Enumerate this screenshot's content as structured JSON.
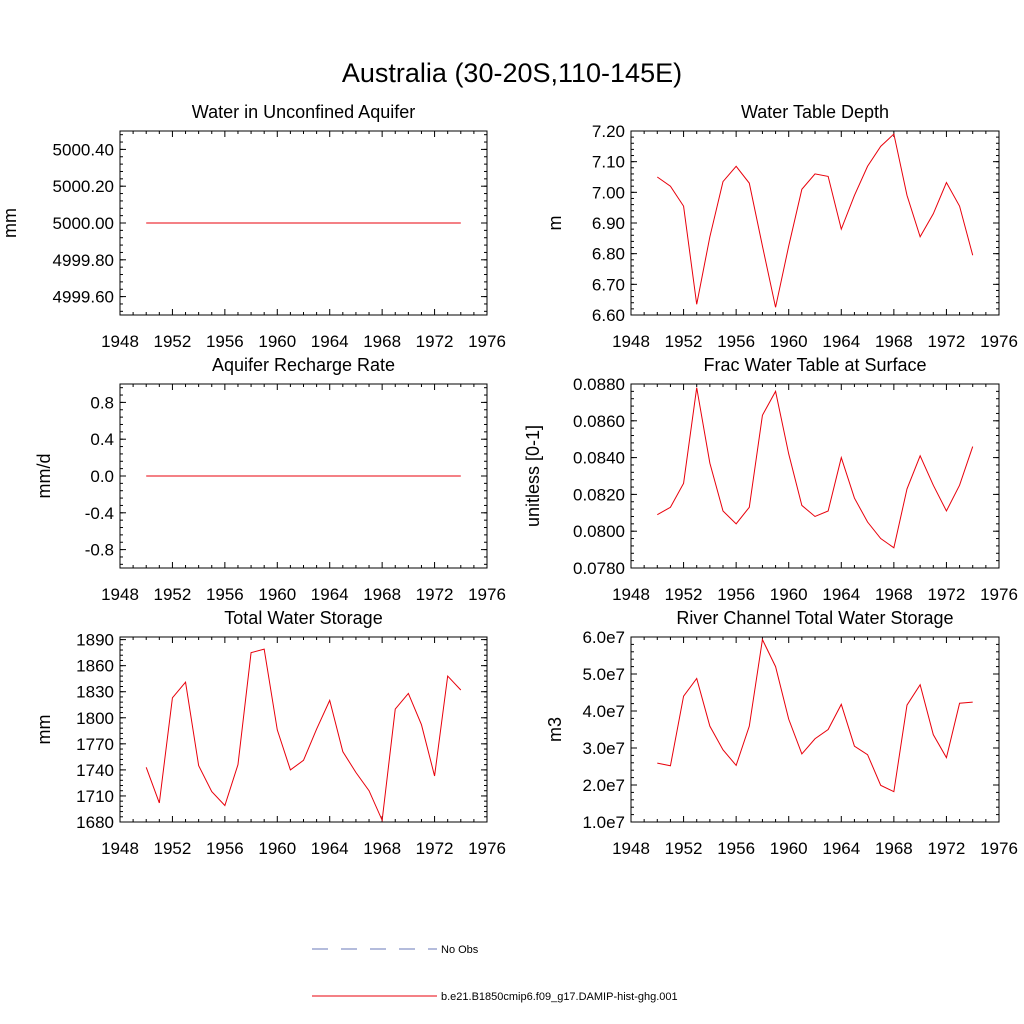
{
  "main_title": "Australia (30-20S,110-145E)",
  "colors": {
    "series": "#e8000b",
    "obs": "#6a7ab8"
  },
  "legend": {
    "obs_label": "No Obs",
    "model_label": "b.e21.B1850cmip6.f09_g17.DAMIP-hist-ghg.001"
  },
  "chart_data": [
    {
      "type": "line",
      "title": "Water in Unconfined Aquifer",
      "ylabel": "mm",
      "xlim": [
        1948,
        1976
      ],
      "ylim": [
        4999.5,
        5000.5
      ],
      "xticks": [
        1948,
        1952,
        1956,
        1960,
        1964,
        1968,
        1972,
        1976
      ],
      "xtick_labels": [
        "1948",
        "1952",
        "1956",
        "1960",
        "1964",
        "1968",
        "1972",
        "1976"
      ],
      "yticks": [
        4999.6,
        4999.8,
        5000.0,
        5000.2,
        5000.4
      ],
      "ytick_labels": [
        "4999.60",
        "4999.80",
        "5000.00",
        "5000.20",
        "5000.40"
      ],
      "x": [
        1950,
        1951,
        1952,
        1953,
        1954,
        1955,
        1956,
        1957,
        1958,
        1959,
        1960,
        1961,
        1962,
        1963,
        1964,
        1965,
        1966,
        1967,
        1968,
        1969,
        1970,
        1971,
        1972,
        1973,
        1974
      ],
      "series": [
        {
          "values": [
            5000,
            5000,
            5000,
            5000,
            5000,
            5000,
            5000,
            5000,
            5000,
            5000,
            5000,
            5000,
            5000,
            5000,
            5000,
            5000,
            5000,
            5000,
            5000,
            5000,
            5000,
            5000,
            5000,
            5000,
            5000
          ]
        }
      ]
    },
    {
      "type": "line",
      "title": "Water Table Depth",
      "ylabel": "m",
      "xlim": [
        1948,
        1976
      ],
      "ylim": [
        6.6,
        7.2
      ],
      "xticks": [
        1948,
        1952,
        1956,
        1960,
        1964,
        1968,
        1972,
        1976
      ],
      "xtick_labels": [
        "1948",
        "1952",
        "1956",
        "1960",
        "1964",
        "1968",
        "1972",
        "1976"
      ],
      "yticks": [
        6.6,
        6.7,
        6.8,
        6.9,
        7.0,
        7.1,
        7.2
      ],
      "ytick_labels": [
        "6.60",
        "6.70",
        "6.80",
        "6.90",
        "7.00",
        "7.10",
        "7.20"
      ],
      "x": [
        1950,
        1951,
        1952,
        1953,
        1954,
        1955,
        1956,
        1957,
        1958,
        1959,
        1960,
        1961,
        1962,
        1963,
        1964,
        1965,
        1966,
        1967,
        1968,
        1969,
        1970,
        1971,
        1972,
        1973,
        1974
      ],
      "series": [
        {
          "values": [
            7.05,
            7.02,
            6.955,
            6.635,
            6.855,
            7.035,
            7.085,
            7.03,
            6.825,
            6.625,
            6.825,
            7.01,
            7.06,
            7.052,
            6.88,
            6.99,
            7.085,
            7.15,
            7.19,
            6.99,
            6.855,
            6.93,
            7.032,
            6.955,
            6.795
          ]
        }
      ]
    },
    {
      "type": "line",
      "title": "Aquifer Recharge Rate",
      "ylabel": "mm/d",
      "xlim": [
        1948,
        1976
      ],
      "ylim": [
        -1.0,
        1.0
      ],
      "xticks": [
        1948,
        1952,
        1956,
        1960,
        1964,
        1968,
        1972,
        1976
      ],
      "xtick_labels": [
        "1948",
        "1952",
        "1956",
        "1960",
        "1964",
        "1968",
        "1972",
        "1976"
      ],
      "yticks": [
        -0.8,
        -0.4,
        0.0,
        0.4,
        0.8
      ],
      "ytick_labels": [
        "-0.8",
        "-0.4",
        "0.0",
        "0.4",
        "0.8"
      ],
      "x": [
        1950,
        1951,
        1952,
        1953,
        1954,
        1955,
        1956,
        1957,
        1958,
        1959,
        1960,
        1961,
        1962,
        1963,
        1964,
        1965,
        1966,
        1967,
        1968,
        1969,
        1970,
        1971,
        1972,
        1973,
        1974
      ],
      "series": [
        {
          "values": [
            0,
            0,
            0,
            0,
            0,
            0,
            0,
            0,
            0,
            0,
            0,
            0,
            0,
            0,
            0,
            0,
            0,
            0,
            0,
            0,
            0,
            0,
            0,
            0,
            0
          ]
        }
      ]
    },
    {
      "type": "line",
      "title": "Frac Water Table at Surface",
      "ylabel": "unitless [0-1]",
      "xlim": [
        1948,
        1976
      ],
      "ylim": [
        0.078,
        0.088
      ],
      "xticks": [
        1948,
        1952,
        1956,
        1960,
        1964,
        1968,
        1972,
        1976
      ],
      "xtick_labels": [
        "1948",
        "1952",
        "1956",
        "1960",
        "1964",
        "1968",
        "1972",
        "1976"
      ],
      "yticks": [
        0.078,
        0.08,
        0.082,
        0.084,
        0.086,
        0.088
      ],
      "ytick_labels": [
        "0.0780",
        "0.0800",
        "0.0820",
        "0.0840",
        "0.0860",
        "0.0880"
      ],
      "x": [
        1950,
        1951,
        1952,
        1953,
        1954,
        1955,
        1956,
        1957,
        1958,
        1959,
        1960,
        1961,
        1962,
        1963,
        1964,
        1965,
        1966,
        1967,
        1968,
        1969,
        1970,
        1971,
        1972,
        1973,
        1974
      ],
      "series": [
        {
          "values": [
            0.0809,
            0.0813,
            0.0826,
            0.0878,
            0.0837,
            0.0811,
            0.0804,
            0.0813,
            0.0863,
            0.0876,
            0.0842,
            0.0814,
            0.0808,
            0.0811,
            0.084,
            0.0818,
            0.0805,
            0.0796,
            0.0791,
            0.0823,
            0.0841,
            0.0825,
            0.0811,
            0.0825,
            0.0846
          ]
        }
      ]
    },
    {
      "type": "line",
      "title": "Total Water Storage",
      "ylabel": "mm",
      "xlim": [
        1948,
        1976
      ],
      "ylim": [
        1680,
        1893
      ],
      "xticks": [
        1948,
        1952,
        1956,
        1960,
        1964,
        1968,
        1972,
        1976
      ],
      "xtick_labels": [
        "1948",
        "1952",
        "1956",
        "1960",
        "1964",
        "1968",
        "1972",
        "1976"
      ],
      "yticks": [
        1680,
        1710,
        1740,
        1770,
        1800,
        1830,
        1860,
        1890
      ],
      "ytick_labels": [
        "1680",
        "1710",
        "1740",
        "1770",
        "1800",
        "1830",
        "1860",
        "1890"
      ],
      "x": [
        1950,
        1951,
        1952,
        1953,
        1954,
        1955,
        1956,
        1957,
        1958,
        1959,
        1960,
        1961,
        1962,
        1963,
        1964,
        1965,
        1966,
        1967,
        1968,
        1969,
        1970,
        1971,
        1972,
        1973,
        1974
      ],
      "series": [
        {
          "values": [
            1743,
            1702,
            1823,
            1841,
            1745,
            1715,
            1699,
            1746,
            1875,
            1879,
            1786,
            1740,
            1751,
            1787,
            1820,
            1761,
            1737,
            1716,
            1682,
            1810,
            1828,
            1792,
            1733,
            1848,
            1832
          ]
        }
      ]
    },
    {
      "type": "line",
      "title": "River Channel Total Water Storage",
      "ylabel": "m3",
      "xlim": [
        1948,
        1976
      ],
      "ylim": [
        10000000,
        60000000
      ],
      "xticks": [
        1948,
        1952,
        1956,
        1960,
        1964,
        1968,
        1972,
        1976
      ],
      "xtick_labels": [
        "1948",
        "1952",
        "1956",
        "1960",
        "1964",
        "1968",
        "1972",
        "1976"
      ],
      "yticks": [
        10000000,
        20000000,
        30000000,
        40000000,
        50000000,
        60000000
      ],
      "ytick_labels": [
        "1.0e7",
        "2.0e7",
        "3.0e7",
        "4.0e7",
        "5.0e7",
        "6.0e7"
      ],
      "x": [
        1950,
        1951,
        1952,
        1953,
        1954,
        1955,
        1956,
        1957,
        1958,
        1959,
        1960,
        1961,
        1962,
        1963,
        1964,
        1965,
        1966,
        1967,
        1968,
        1969,
        1970,
        1971,
        1972,
        1973,
        1974
      ],
      "series": [
        {
          "values": [
            25900000,
            25200000,
            44000000,
            48800000,
            35900000,
            29500000,
            25300000,
            35900000,
            59300000,
            52000000,
            37800000,
            28400000,
            32500000,
            35000000,
            41800000,
            30500000,
            28200000,
            19900000,
            18200000,
            41600000,
            47100000,
            33600000,
            27400000,
            42100000,
            42400000
          ]
        }
      ]
    }
  ]
}
